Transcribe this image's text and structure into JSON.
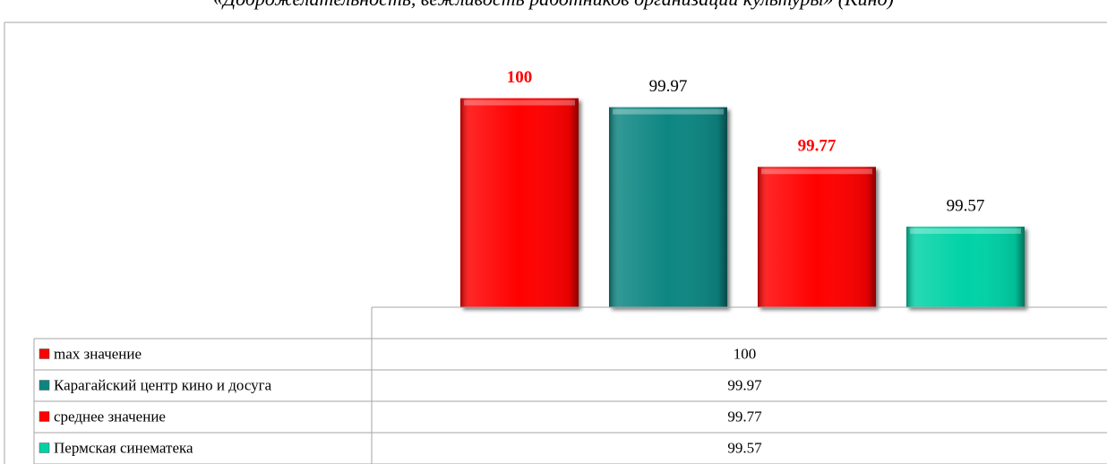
{
  "chart_data": {
    "type": "bar",
    "title": "«Доброжелательность, вежливость работников организаций культуры» (Кино)",
    "categories": [
      "max значение",
      "Карагайский центр кино и досуга",
      "среднее значение",
      "Пермская синематека"
    ],
    "values": [
      100,
      99.97,
      99.77,
      99.57
    ],
    "colors": [
      "#ff0000",
      "#0a8682",
      "#ff0000",
      "#00d2a6"
    ],
    "label_colors": [
      "#ff0000",
      "#000000",
      "#ff0000",
      "#000000"
    ],
    "label_bold": [
      true,
      false,
      true,
      false
    ],
    "ylim": [
      99.3,
      100.2
    ],
    "data_table": true
  }
}
